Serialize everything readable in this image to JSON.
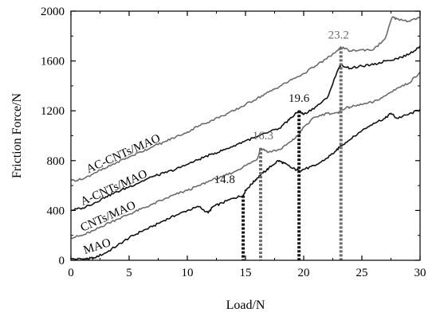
{
  "chart_data": {
    "type": "line",
    "xlabel": "Load/N",
    "ylabel": "Friction Force/N",
    "xlim": [
      0,
      30
    ],
    "ylim": [
      0,
      2000
    ],
    "xticks": [
      0,
      5,
      10,
      15,
      20,
      25,
      30
    ],
    "yticks": [
      0,
      400,
      800,
      1200,
      1600,
      2000
    ],
    "x_tick_labels": [
      "0",
      "5",
      "10",
      "15",
      "20",
      "25",
      "30"
    ],
    "y_tick_labels": [
      "0",
      "400",
      "800",
      "1200",
      "1600",
      "2000"
    ],
    "grid": false,
    "legend": "none",
    "series": [
      {
        "name": "MAO",
        "color": "#111111",
        "x": [
          0,
          1,
          1.5,
          2,
          3,
          4,
          5,
          6,
          7,
          8,
          9,
          10,
          11,
          11.8,
          12.2,
          13,
          14,
          14.8,
          15,
          15.5,
          16,
          16.5,
          17,
          17.8,
          18.3,
          19,
          19.6,
          20,
          21,
          22,
          22.8,
          23.2,
          24,
          25,
          26,
          27,
          27.5,
          28,
          29,
          30
        ],
        "y": [
          10,
          10,
          12,
          20,
          60,
          120,
          180,
          230,
          270,
          320,
          360,
          400,
          430,
          380,
          430,
          460,
          500,
          520,
          560,
          610,
          660,
          700,
          740,
          800,
          780,
          740,
          720,
          730,
          760,
          820,
          880,
          920,
          970,
          1040,
          1100,
          1140,
          1180,
          1140,
          1170,
          1210
        ]
      },
      {
        "name": "CNTs/MAO",
        "color": "#6b6b6b",
        "x": [
          0,
          1,
          2,
          3,
          4,
          5,
          6,
          7,
          8,
          9,
          10,
          11,
          12,
          13,
          14,
          15,
          16,
          16.3,
          17,
          18,
          19,
          19.6,
          20,
          21,
          22,
          23,
          23.2,
          24,
          25,
          26,
          27,
          28,
          29,
          30
        ],
        "y": [
          180,
          200,
          240,
          290,
          330,
          370,
          410,
          450,
          490,
          530,
          560,
          600,
          640,
          670,
          710,
          760,
          810,
          900,
          870,
          890,
          960,
          1010,
          1070,
          1150,
          1180,
          1180,
          1210,
          1230,
          1250,
          1270,
          1320,
          1380,
          1420,
          1510
        ]
      },
      {
        "name": "A-CNTs/MAO",
        "color": "#111111",
        "x": [
          0,
          1,
          2,
          3,
          4,
          5,
          6,
          7,
          8,
          9,
          10,
          11,
          12,
          13,
          14,
          15,
          16,
          17,
          18,
          18.5,
          19,
          19.6,
          20,
          21,
          22,
          23,
          23.2,
          24,
          25,
          26,
          27,
          28,
          29,
          30
        ],
        "y": [
          400,
          420,
          460,
          510,
          550,
          590,
          630,
          670,
          700,
          730,
          770,
          810,
          850,
          880,
          920,
          960,
          990,
          1030,
          1060,
          1110,
          1150,
          1200,
          1170,
          1230,
          1300,
          1540,
          1570,
          1540,
          1560,
          1570,
          1600,
          1620,
          1650,
          1720
        ]
      },
      {
        "name": "AC-CNTs/MAO",
        "color": "#6b6b6b",
        "x": [
          0,
          1,
          2,
          3,
          4,
          5,
          6,
          7,
          8,
          9,
          10,
          11,
          12,
          13,
          14,
          15,
          16,
          17,
          18,
          19,
          20,
          21,
          22,
          23,
          23.2,
          24,
          25,
          26,
          27,
          27.6,
          28,
          29,
          30
        ],
        "y": [
          640,
          650,
          700,
          740,
          790,
          830,
          870,
          910,
          950,
          990,
          1030,
          1080,
          1120,
          1160,
          1200,
          1250,
          1300,
          1350,
          1400,
          1450,
          1500,
          1560,
          1620,
          1690,
          1710,
          1680,
          1690,
          1690,
          1780,
          1950,
          1940,
          1920,
          1950
        ]
      }
    ],
    "series_labels": [
      {
        "text": "MAO",
        "x": 1.2,
        "y": 50,
        "angle": -18
      },
      {
        "text": "CNTs/MAO",
        "x": 1.0,
        "y": 230,
        "angle": -24
      },
      {
        "text": "A-CNTs/MAO",
        "x": 1.0,
        "y": 440,
        "angle": -24
      },
      {
        "text": "AC-CNTs/MAO",
        "x": 1.5,
        "y": 700,
        "angle": -24
      }
    ],
    "annotations": [
      {
        "label": "14.8",
        "x": 14.8,
        "y_top": 520,
        "color": "#111111",
        "text_x": 13.2,
        "text_y": 620
      },
      {
        "label": "16.3",
        "x": 16.3,
        "y_top": 900,
        "color": "#6b6b6b",
        "text_x": 16.5,
        "text_y": 970
      },
      {
        "label": "19.6",
        "x": 19.6,
        "y_top": 1200,
        "color": "#111111",
        "text_x": 19.6,
        "text_y": 1270
      },
      {
        "label": "23.2",
        "x": 23.2,
        "y_top": 1710,
        "color": "#6b6b6b",
        "text_x": 23.0,
        "text_y": 1780
      }
    ]
  }
}
